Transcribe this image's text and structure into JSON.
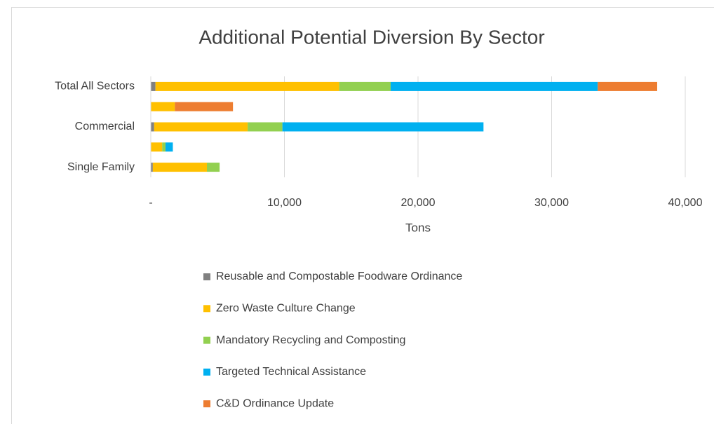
{
  "chart_data": {
    "type": "stacked_barh",
    "title": "Additional Potential Diversion By Sector",
    "categories": [
      "Total All Sectors",
      null,
      "Commercial",
      null,
      "Single Family"
    ],
    "series": [
      {
        "name": "Reusable and Compostable Foodware Ordinance",
        "color": "#808080",
        "values": [
          350,
          0,
          250,
          0,
          150
        ]
      },
      {
        "name": "Zero Waste Culture Change",
        "color": "#ffc000",
        "values": [
          13750,
          1800,
          7000,
          850,
          4050
        ]
      },
      {
        "name": "Mandatory Recycling and Composting",
        "color": "#92d050",
        "values": [
          3850,
          0,
          2600,
          250,
          950
        ]
      },
      {
        "name": "Targeted Technical Assistance",
        "color": "#00b0f0",
        "values": [
          15500,
          0,
          15050,
          550,
          0
        ]
      },
      {
        "name": "C&D Ordinance Update",
        "color": "#ed7d31",
        "values": [
          4450,
          4350,
          0,
          0,
          0
        ]
      }
    ],
    "xlabel": "Tons",
    "xlim": [
      0,
      40000
    ],
    "xticks": [
      {
        "value": 0,
        "label": "-"
      },
      {
        "value": 10000,
        "label": "10,000"
      },
      {
        "value": 20000,
        "label": "20,000"
      },
      {
        "value": 30000,
        "label": "30,000"
      },
      {
        "value": 40000,
        "label": "40,000"
      }
    ],
    "grid": true,
    "legend": "bottom"
  }
}
